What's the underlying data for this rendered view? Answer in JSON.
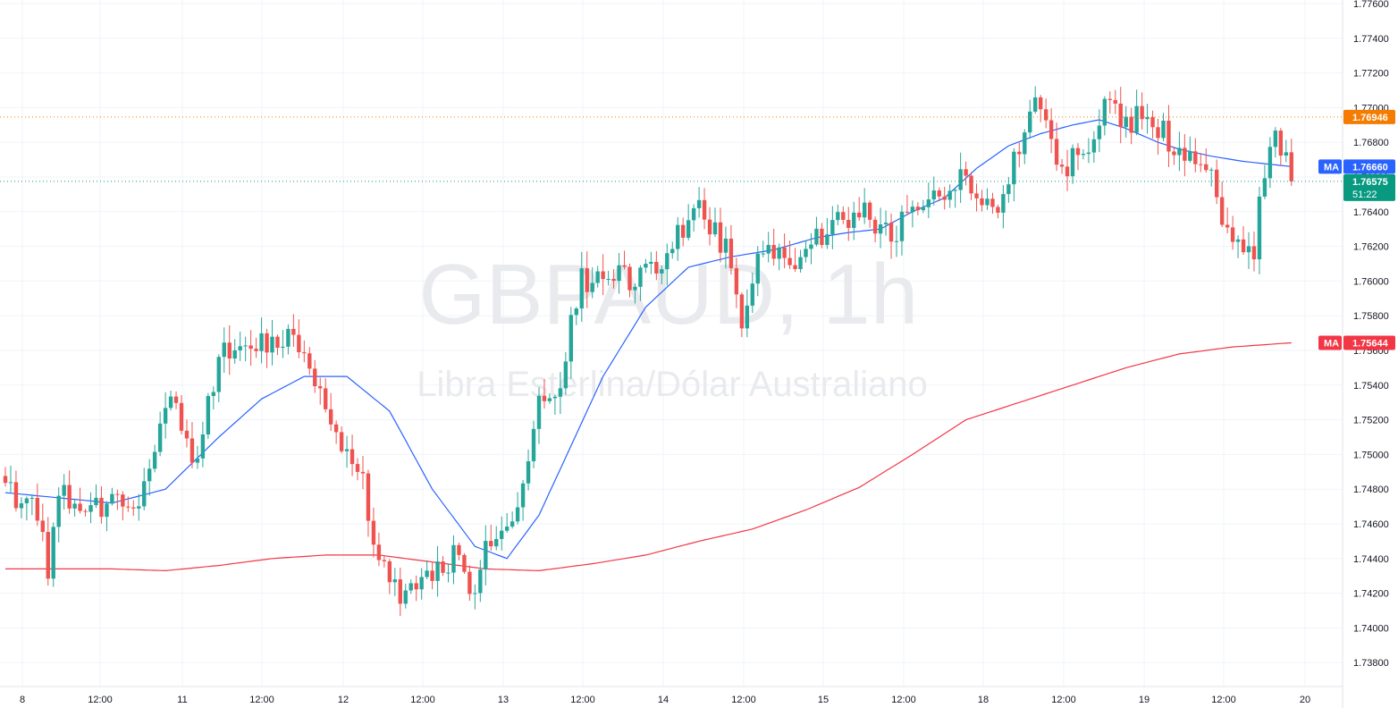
{
  "watermark": {
    "symbol": "GBPAUD, 1h",
    "description": "Libra Esterlina/Dólar Australiano"
  },
  "colors": {
    "up": "#26a69a",
    "down": "#ef5350",
    "ma_fast": "#2962ff",
    "ma_slow": "#f23645",
    "orange": "#f57c00",
    "grid": "#f0f3fa",
    "axis_text": "#131722"
  },
  "price_tags": {
    "orange_line": {
      "value": "1.76946",
      "color": "#f57c00"
    },
    "ma_fast": {
      "label": "MA",
      "value": "1.76660",
      "color": "#2962ff"
    },
    "last_price": {
      "value": "1.76575",
      "countdown": "51:22",
      "color": "#089981"
    },
    "ma_slow": {
      "label": "MA",
      "value": "1.75644",
      "color": "#f23645"
    }
  },
  "chart_data": {
    "type": "candlestick",
    "title": "GBPAUD, 1h",
    "subtitle": "Libra Esterlina/Dólar Australiano",
    "ylim": [
      1.737,
      1.7762
    ],
    "y_ticks": [
      "1.77600",
      "1.77400",
      "1.77200",
      "1.77000",
      "1.76800",
      "1.76600",
      "1.76400",
      "1.76200",
      "1.76000",
      "1.75800",
      "1.75600",
      "1.75400",
      "1.75200",
      "1.75000",
      "1.74800",
      "1.74600",
      "1.74400",
      "1.74200",
      "1.74000",
      "1.73800"
    ],
    "x_ticks": [
      "8",
      "12:00",
      "11",
      "12:00",
      "12",
      "12:00",
      "13",
      "12:00",
      "14",
      "12:00",
      "15",
      "12:00",
      "18",
      "12:00",
      "19",
      "12:00",
      "20"
    ],
    "waypoints": [
      [
        0,
        1.748
      ],
      [
        6,
        1.7468
      ],
      [
        8,
        1.7435
      ],
      [
        10,
        1.7478
      ],
      [
        15,
        1.7462
      ],
      [
        20,
        1.7478
      ],
      [
        25,
        1.747
      ],
      [
        31,
        1.7538
      ],
      [
        36,
        1.7492
      ],
      [
        40,
        1.756
      ],
      [
        48,
        1.7566
      ],
      [
        54,
        1.7568
      ],
      [
        58,
        1.7538
      ],
      [
        62,
        1.7508
      ],
      [
        66,
        1.7495
      ],
      [
        70,
        1.744
      ],
      [
        74,
        1.7418
      ],
      [
        77,
        1.743
      ],
      [
        84,
        1.744
      ],
      [
        88,
        1.7422
      ],
      [
        90,
        1.7445
      ],
      [
        96,
        1.7468
      ],
      [
        100,
        1.753
      ],
      [
        104,
        1.7545
      ],
      [
        108,
        1.76
      ],
      [
        113,
        1.7608
      ],
      [
        118,
        1.7598
      ],
      [
        124,
        1.7618
      ],
      [
        130,
        1.764
      ],
      [
        136,
        1.7615
      ],
      [
        138,
        1.758
      ],
      [
        142,
        1.762
      ],
      [
        148,
        1.7612
      ],
      [
        155,
        1.7632
      ],
      [
        160,
        1.764
      ],
      [
        166,
        1.7625
      ],
      [
        172,
        1.765
      ],
      [
        176,
        1.765
      ],
      [
        180,
        1.7662
      ],
      [
        185,
        1.764
      ],
      [
        188,
        1.7662
      ],
      [
        192,
        1.77
      ],
      [
        194,
        1.7705
      ],
      [
        197,
        1.766
      ],
      [
        202,
        1.7675
      ],
      [
        206,
        1.77
      ],
      [
        210,
        1.769
      ],
      [
        214,
        1.77
      ],
      [
        218,
        1.768
      ],
      [
        222,
        1.767
      ],
      [
        226,
        1.7665
      ],
      [
        228,
        1.763
      ],
      [
        232,
        1.7615
      ],
      [
        234,
        1.7618
      ],
      [
        236,
        1.7665
      ],
      [
        238,
        1.7685
      ],
      [
        241,
        1.7658
      ]
    ],
    "ma_fast": [
      [
        0,
        1.7478
      ],
      [
        20,
        1.7472
      ],
      [
        30,
        1.748
      ],
      [
        40,
        1.751
      ],
      [
        48,
        1.7532
      ],
      [
        56,
        1.7545
      ],
      [
        64,
        1.7545
      ],
      [
        72,
        1.7525
      ],
      [
        80,
        1.748
      ],
      [
        88,
        1.7447
      ],
      [
        94,
        1.744
      ],
      [
        100,
        1.7465
      ],
      [
        106,
        1.7505
      ],
      [
        112,
        1.7545
      ],
      [
        120,
        1.7585
      ],
      [
        128,
        1.7608
      ],
      [
        136,
        1.7614
      ],
      [
        144,
        1.7618
      ],
      [
        152,
        1.7625
      ],
      [
        158,
        1.7628
      ],
      [
        164,
        1.763
      ],
      [
        170,
        1.764
      ],
      [
        176,
        1.7648
      ],
      [
        182,
        1.7665
      ],
      [
        188,
        1.7678
      ],
      [
        194,
        1.7685
      ],
      [
        200,
        1.769
      ],
      [
        205,
        1.7693
      ],
      [
        210,
        1.7688
      ],
      [
        216,
        1.768
      ],
      [
        220,
        1.7676
      ],
      [
        226,
        1.7672
      ],
      [
        232,
        1.7669
      ],
      [
        238,
        1.7667
      ],
      [
        241,
        1.7666
      ]
    ],
    "ma_slow": [
      [
        0,
        1.7434
      ],
      [
        10,
        1.7434
      ],
      [
        20,
        1.7434
      ],
      [
        30,
        1.7433
      ],
      [
        40,
        1.7436
      ],
      [
        50,
        1.744
      ],
      [
        60,
        1.7442
      ],
      [
        70,
        1.7442
      ],
      [
        80,
        1.7438
      ],
      [
        90,
        1.7434
      ],
      [
        100,
        1.7433
      ],
      [
        110,
        1.7437
      ],
      [
        120,
        1.7442
      ],
      [
        130,
        1.745
      ],
      [
        140,
        1.7457
      ],
      [
        150,
        1.7468
      ],
      [
        160,
        1.7481
      ],
      [
        170,
        1.75
      ],
      [
        180,
        1.752
      ],
      [
        190,
        1.753
      ],
      [
        200,
        1.754
      ],
      [
        210,
        1.755
      ],
      [
        220,
        1.7558
      ],
      [
        230,
        1.7562
      ],
      [
        241,
        1.75644
      ]
    ],
    "last_price": 1.76575,
    "orange_level": 1.76946
  }
}
